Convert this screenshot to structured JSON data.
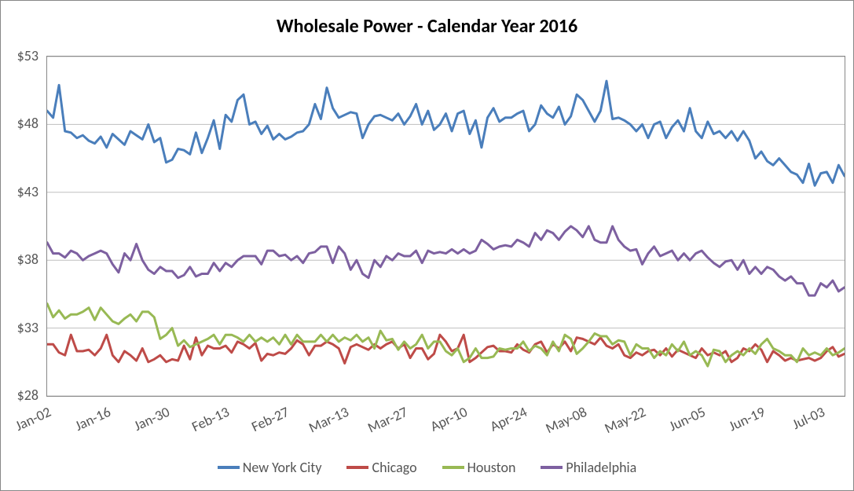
{
  "chart": {
    "type": "line",
    "title": "Wholesale Power - Calendar Year 2016",
    "title_fontsize": 24,
    "title_fontweight": "bold",
    "title_color": "#000000",
    "background_color": "#ffffff",
    "border_color": "#888888",
    "grid_color": "#bfbfbf",
    "axis_label_color": "#555555",
    "axis_label_fontsize": 18,
    "line_width": 3,
    "y": {
      "min": 28,
      "max": 53,
      "ticks": [
        28,
        33,
        38,
        43,
        48,
        53
      ],
      "tick_labels": [
        "$28",
        "$33",
        "$38",
        "$43",
        "$48",
        "$53"
      ]
    },
    "x": {
      "labels": [
        "Jan-02",
        "Jan-16",
        "Jan-30",
        "Feb-13",
        "Feb-27",
        "Mar-13",
        "Mar-27",
        "Apr-10",
        "Apr-24",
        "May-08",
        "May-22",
        "Jun-05",
        "Jun-19",
        "Jul-03"
      ],
      "tick_every": 10,
      "count": 135
    },
    "series": [
      {
        "name": "New York City",
        "color": "#4a7ebb",
        "values": [
          49.0,
          48.5,
          50.9,
          47.5,
          47.4,
          47.0,
          47.2,
          46.8,
          46.6,
          47.1,
          46.3,
          47.3,
          46.9,
          46.5,
          47.5,
          47.2,
          46.9,
          48.0,
          46.7,
          47.0,
          45.2,
          45.4,
          46.2,
          46.1,
          45.8,
          47.4,
          45.9,
          47.0,
          48.3,
          46.2,
          48.7,
          48.2,
          49.8,
          50.2,
          48.0,
          48.2,
          47.3,
          47.9,
          46.9,
          47.3,
          46.9,
          47.1,
          47.4,
          47.5,
          48.0,
          49.5,
          48.4,
          50.7,
          49.2,
          48.5,
          48.7,
          48.9,
          48.8,
          47.0,
          48.0,
          48.6,
          48.7,
          48.5,
          48.3,
          48.8,
          48.0,
          48.6,
          49.5,
          48.0,
          49.0,
          47.6,
          48.0,
          48.8,
          47.5,
          48.8,
          49.0,
          47.3,
          48.3,
          46.3,
          48.5,
          49.2,
          48.2,
          48.5,
          48.5,
          48.8,
          49.0,
          47.5,
          48.0,
          49.4,
          48.8,
          48.5,
          49.3,
          48.0,
          48.6,
          50.2,
          49.8,
          49.0,
          48.2,
          49.0,
          51.2,
          48.4,
          48.5,
          48.3,
          48.0,
          47.5,
          48.0,
          47.0,
          48.0,
          48.2,
          47.0,
          47.8,
          48.3,
          47.5,
          49.2,
          47.5,
          47.0,
          48.2,
          47.3,
          47.5,
          47.0,
          47.5,
          46.8,
          47.5,
          46.8,
          45.5,
          46.0,
          45.3,
          45.0,
          45.5,
          45.0,
          44.5,
          44.3,
          43.7,
          45.1,
          43.5,
          44.4,
          44.5,
          43.7,
          45.0,
          44.2
        ]
      },
      {
        "name": "Chicago",
        "color": "#be4b48",
        "values": [
          31.8,
          31.8,
          31.2,
          31.0,
          32.5,
          31.3,
          31.3,
          31.4,
          31.0,
          31.5,
          32.5,
          31.0,
          30.5,
          31.3,
          31.0,
          30.6,
          31.5,
          30.5,
          30.7,
          31.0,
          30.5,
          30.7,
          30.6,
          31.7,
          30.7,
          32.3,
          31.0,
          31.7,
          31.5,
          31.5,
          31.7,
          31.2,
          32.0,
          31.8,
          31.5,
          31.9,
          30.6,
          31.1,
          31.0,
          31.2,
          31.1,
          31.5,
          32.1,
          31.8,
          31.0,
          31.7,
          31.7,
          32.0,
          31.8,
          31.5,
          30.4,
          31.6,
          31.8,
          31.6,
          31.4,
          31.8,
          31.5,
          31.8,
          32.0,
          31.5,
          31.8,
          30.8,
          31.5,
          31.5,
          30.7,
          31.1,
          32.5,
          32.0,
          31.3,
          31.5,
          32.5,
          30.5,
          30.8,
          31.2,
          31.6,
          31.7,
          31.3,
          31.3,
          31.2,
          31.8,
          31.4,
          31.2,
          31.8,
          32.0,
          31.2,
          31.8,
          31.5,
          32.0,
          31.3,
          32.3,
          32.2,
          32.0,
          31.8,
          32.3,
          31.7,
          31.5,
          31.8,
          31.0,
          30.8,
          31.2,
          31.0,
          31.3,
          31.4,
          31.0,
          31.5,
          30.9,
          31.4,
          31.2,
          31.0,
          30.8,
          31.5,
          31.0,
          31.2,
          31.0,
          31.3,
          30.5,
          30.8,
          31.5,
          31.3,
          31.8,
          31.4,
          30.5,
          31.3,
          31.0,
          30.6,
          30.8,
          30.6,
          30.7,
          30.8,
          30.6,
          30.8,
          31.3,
          31.6,
          30.9,
          31.1
        ]
      },
      {
        "name": "Houston",
        "color": "#98b954",
        "values": [
          34.8,
          33.8,
          34.3,
          33.7,
          34.0,
          34.0,
          34.2,
          34.5,
          33.6,
          34.5,
          34.0,
          33.5,
          33.3,
          33.7,
          34.0,
          33.5,
          34.2,
          34.2,
          33.8,
          32.2,
          32.5,
          33.0,
          31.7,
          32.1,
          31.6,
          31.8,
          32.0,
          32.2,
          32.5,
          31.8,
          32.5,
          32.5,
          32.3,
          32.0,
          32.5,
          32.0,
          32.3,
          32.0,
          32.3,
          31.8,
          32.5,
          31.8,
          32.5,
          32.0,
          32.0,
          32.0,
          32.5,
          32.0,
          32.5,
          32.0,
          32.3,
          32.1,
          32.5,
          32.0,
          32.3,
          31.5,
          32.8,
          32.1,
          32.2,
          31.4,
          32.0,
          31.5,
          31.8,
          32.5,
          31.5,
          32.0,
          32.0,
          31.3,
          31.0,
          31.5,
          30.5,
          30.8,
          31.5,
          30.8,
          30.8,
          30.9,
          31.5,
          31.4,
          31.5,
          31.5,
          32.0,
          31.3,
          31.7,
          31.5,
          31.0,
          32.0,
          31.3,
          32.5,
          32.2,
          31.1,
          31.5,
          32.0,
          32.6,
          32.4,
          32.4,
          31.8,
          32.1,
          32.0,
          31.0,
          31.8,
          31.5,
          31.5,
          30.8,
          31.3,
          31.0,
          31.8,
          31.3,
          32.0,
          31.0,
          31.3,
          31.0,
          30.2,
          31.4,
          31.3,
          30.5,
          31.0,
          31.3,
          31.0,
          31.5,
          31.1,
          31.8,
          32.2,
          31.5,
          31.3,
          31.0,
          31.0,
          30.5,
          31.5,
          31.0,
          31.2,
          31.0,
          31.5,
          31.0,
          31.2,
          31.5
        ]
      },
      {
        "name": "Philadelphia",
        "color": "#7d60a0",
        "values": [
          39.3,
          38.5,
          38.5,
          38.2,
          38.7,
          38.5,
          38.0,
          38.3,
          38.5,
          38.7,
          38.5,
          37.7,
          37.1,
          38.5,
          38.0,
          39.2,
          38.0,
          37.3,
          37.0,
          37.5,
          37.2,
          37.2,
          36.7,
          36.9,
          37.5,
          36.8,
          37.0,
          37.0,
          37.8,
          37.2,
          37.8,
          37.5,
          38.0,
          38.3,
          38.3,
          38.3,
          37.7,
          38.7,
          38.7,
          38.3,
          38.4,
          38.0,
          38.3,
          37.8,
          38.5,
          38.6,
          39.0,
          39.0,
          37.8,
          39.0,
          38.5,
          37.3,
          38.0,
          37.0,
          36.7,
          38.0,
          37.5,
          38.3,
          38.0,
          38.5,
          38.3,
          38.3,
          38.7,
          37.8,
          38.7,
          38.5,
          38.6,
          38.5,
          38.8,
          38.5,
          38.8,
          38.5,
          38.7,
          39.5,
          39.2,
          38.8,
          39.0,
          39.1,
          39.0,
          39.5,
          39.3,
          39.0,
          40.0,
          39.5,
          40.2,
          40.0,
          39.5,
          40.1,
          40.5,
          40.2,
          39.7,
          40.5,
          39.5,
          39.3,
          39.3,
          40.5,
          39.5,
          39.0,
          38.7,
          38.8,
          37.7,
          38.5,
          39.0,
          38.3,
          38.5,
          38.7,
          38.0,
          38.5,
          38.0,
          38.5,
          38.7,
          38.2,
          37.8,
          37.5,
          37.9,
          38.0,
          37.3,
          38.0,
          37.0,
          37.5,
          37.0,
          37.5,
          37.3,
          36.8,
          36.5,
          36.8,
          36.3,
          36.3,
          35.4,
          35.4,
          36.3,
          36.0,
          36.5,
          35.7,
          36.0
        ]
      }
    ],
    "legend": {
      "position": "bottom",
      "fontsize": 18,
      "swatch_width": 28,
      "swatch_height": 4
    }
  }
}
